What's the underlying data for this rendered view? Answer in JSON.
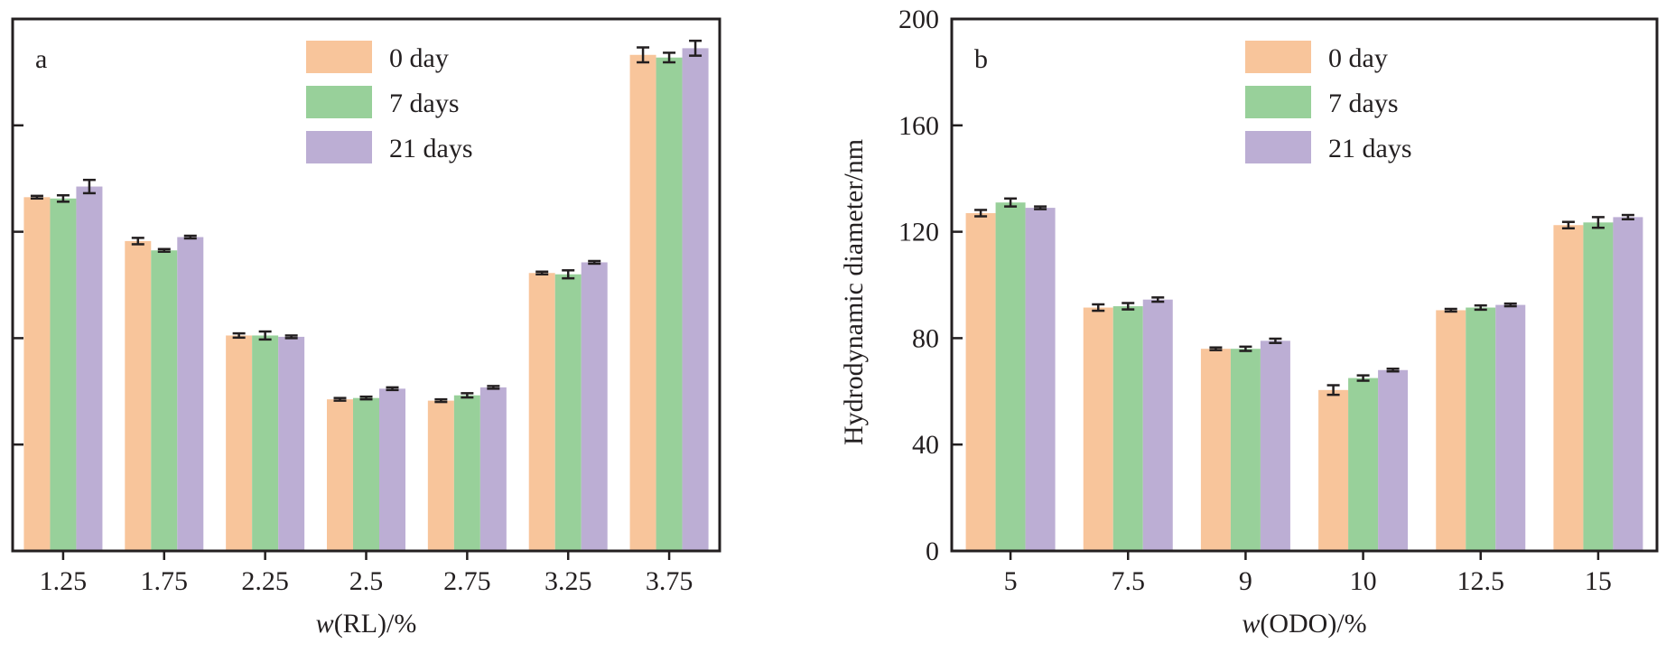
{
  "chart_data": [
    {
      "type": "bar",
      "panel_label": "a",
      "xlabel_var": "w",
      "xlabel_rest": "(RL)/%",
      "ylabel": "",
      "ylim": [
        0,
        200
      ],
      "yticks": [
        0,
        40,
        80,
        120,
        160,
        200
      ],
      "show_ytick_labels": false,
      "categories": [
        "1.25",
        "1.75",
        "2.25",
        "2.5",
        "2.75",
        "3.25",
        "3.75"
      ],
      "legend": {
        "position": "top-right"
      },
      "series": [
        {
          "name": "0 day",
          "color": "#f8c59b",
          "values": [
            133,
            116.5,
            81,
            57,
            56.5,
            104.5,
            186.5
          ],
          "errors": [
            0.5,
            1.2,
            0.8,
            0.5,
            0.5,
            0.5,
            2.8
          ]
        },
        {
          "name": "7 days",
          "color": "#98d09a",
          "values": [
            132.5,
            113,
            81,
            57.5,
            58.5,
            104,
            185.5
          ],
          "errors": [
            1.2,
            0.5,
            1.5,
            0.5,
            0.8,
            1.5,
            1.8
          ]
        },
        {
          "name": "21 days",
          "color": "#bcaed4",
          "values": [
            137,
            118,
            80.5,
            61,
            61.5,
            108.5,
            189
          ],
          "errors": [
            2.5,
            0.5,
            0.5,
            0.5,
            0.5,
            0.5,
            2.8
          ]
        }
      ]
    },
    {
      "type": "bar",
      "panel_label": "b",
      "xlabel_var": "w",
      "xlabel_rest": "(ODO)/%",
      "ylabel": "Hydrodynamic diameter/nm",
      "ylim": [
        0,
        200
      ],
      "yticks": [
        0,
        40,
        80,
        120,
        160,
        200
      ],
      "show_ytick_labels": true,
      "categories": [
        "5",
        "7.5",
        "9",
        "10",
        "12.5",
        "15"
      ],
      "legend": {
        "position": "top-right"
      },
      "series": [
        {
          "name": "0 day",
          "color": "#f8c59b",
          "values": [
            127,
            91.5,
            76,
            60.5,
            90.5,
            122.5
          ],
          "errors": [
            1.2,
            1.2,
            0.5,
            1.8,
            0.5,
            1.2
          ]
        },
        {
          "name": "7 days",
          "color": "#98d09a",
          "values": [
            131,
            92,
            76,
            65,
            91.5,
            123.5
          ],
          "errors": [
            1.5,
            1.2,
            0.8,
            1.0,
            0.8,
            2.0
          ]
        },
        {
          "name": "21 days",
          "color": "#bcaed4",
          "values": [
            129,
            94.5,
            79,
            68,
            92.5,
            125.5
          ],
          "errors": [
            0.5,
            0.8,
            0.8,
            0.5,
            0.5,
            0.8
          ]
        }
      ]
    }
  ]
}
